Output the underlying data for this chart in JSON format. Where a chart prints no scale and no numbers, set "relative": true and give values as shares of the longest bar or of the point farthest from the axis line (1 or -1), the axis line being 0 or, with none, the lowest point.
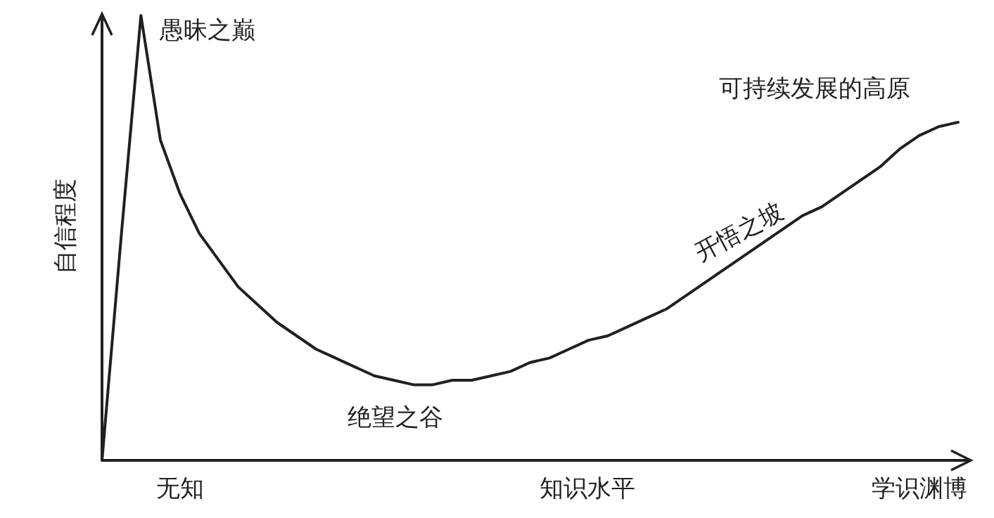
{
  "chart_data": {
    "type": "line",
    "relative": true,
    "xlabel": "知识水平",
    "ylabel": "自信程度",
    "categories": [
      null,
      null,
      null,
      null,
      "无知",
      null,
      null,
      null,
      null,
      null,
      null,
      null,
      null,
      null,
      null,
      null,
      null,
      null,
      null,
      null,
      null,
      null,
      null,
      null,
      null,
      null,
      null,
      null,
      null,
      null,
      null,
      null,
      null,
      null,
      null,
      null,
      null,
      null,
      null,
      null,
      null,
      null,
      "学识渊博",
      null,
      null
    ],
    "values": [
      0,
      0.51,
      1.0,
      0.72,
      0.6,
      0.51,
      0.45,
      0.39,
      0.35,
      0.31,
      0.28,
      0.25,
      0.23,
      0.21,
      0.19,
      0.18,
      0.17,
      0.17,
      0.18,
      0.18,
      0.19,
      0.2,
      0.22,
      0.23,
      0.25,
      0.27,
      0.28,
      0.3,
      0.32,
      0.34,
      0.37,
      0.4,
      0.43,
      0.46,
      0.49,
      0.52,
      0.55,
      0.57,
      0.6,
      0.63,
      0.66,
      0.7,
      0.73,
      0.75,
      0.76
    ],
    "color": "#231f20",
    "annotations": [
      "愚昧之巅",
      "绝望之谷",
      "开悟之坡",
      "可持续发展的高原"
    ]
  }
}
